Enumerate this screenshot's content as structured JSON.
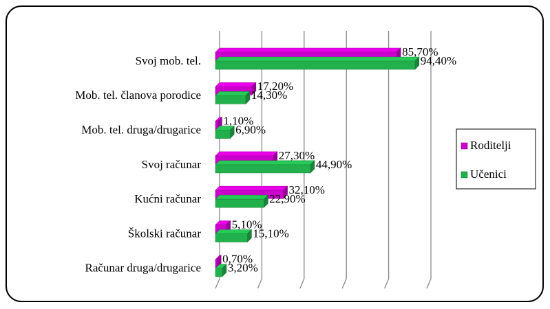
{
  "chart_data": {
    "type": "bar",
    "orientation": "horizontal",
    "categories": [
      "Svoj mob. tel.",
      "Mob. tel. članova porodice",
      "Mob. tel. druga/drugarice",
      "Svoj računar",
      "Kućni računar",
      "Školski računar",
      "Računar druga/drugarice"
    ],
    "series": [
      {
        "name": "Roditelji",
        "color": "#cc00cc",
        "values": [
          85.7,
          17.2,
          1.1,
          27.3,
          32.1,
          5.1,
          0.7
        ],
        "value_labels": [
          "85,70%",
          "17,20%",
          "1,10%",
          "27,30%",
          "32,10%",
          "5,10%",
          "0,70%"
        ]
      },
      {
        "name": "Učenici",
        "color": "#22b04c",
        "values": [
          94.4,
          14.3,
          6.9,
          44.9,
          22.9,
          15.1,
          3.2
        ],
        "value_labels": [
          "94,40%",
          "14,30%",
          "6,90%",
          "44,90%",
          "22,90%",
          "15,10%",
          "3,20%"
        ]
      }
    ],
    "xlim": [
      0,
      100
    ],
    "xticks": [
      0,
      20,
      40,
      60,
      80,
      100
    ],
    "grid": true,
    "legend": "right"
  }
}
